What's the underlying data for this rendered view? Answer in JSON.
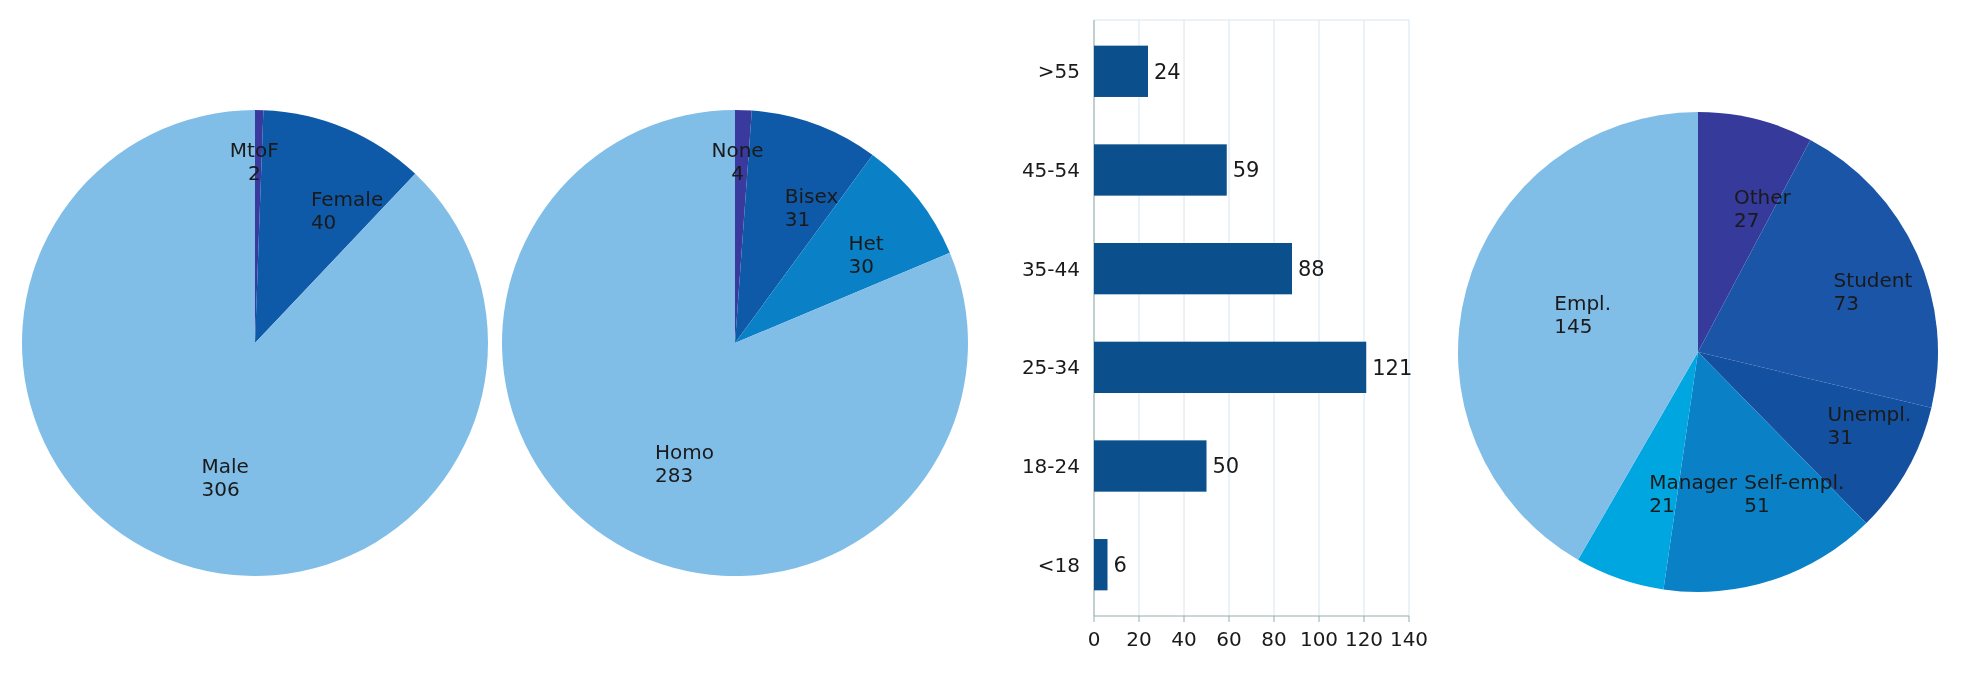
{
  "chart_data": [
    {
      "type": "pie",
      "categories": [
        "MtoF",
        "Female",
        "Male"
      ],
      "values": [
        2,
        40,
        306
      ],
      "colors": [
        "#3a3a9e",
        "#0f5aa8",
        "#80bee8"
      ],
      "data_labels": true
    },
    {
      "type": "pie",
      "categories": [
        "None",
        "Bisex",
        "Het",
        "Homo"
      ],
      "values": [
        4,
        31,
        30,
        283
      ],
      "colors": [
        "#3a3a9e",
        "#0f5aa8",
        "#0a80c6",
        "#80bee8"
      ],
      "data_labels": true
    },
    {
      "type": "bar",
      "orientation": "horizontal",
      "categories": [
        ">55",
        "45-54",
        "35-44",
        "25-34",
        "18-24",
        "<18"
      ],
      "values": [
        24,
        59,
        88,
        121,
        50,
        6
      ],
      "color": "#0b4f8c",
      "xlim": [
        0,
        140
      ],
      "xticks": [
        0,
        20,
        40,
        60,
        80,
        100,
        120,
        140
      ],
      "grid": "x",
      "data_labels": true
    },
    {
      "type": "pie",
      "categories": [
        "Other",
        "Student",
        "Unempl.",
        "Self-empl.",
        "Manager",
        "Empl."
      ],
      "values": [
        27,
        73,
        31,
        51,
        21,
        145
      ],
      "colors": [
        "#353a9b",
        "#1b55a8",
        "#1450a0",
        "#0a80c6",
        "#00a6e0",
        "#80bee8"
      ],
      "data_labels": true
    }
  ]
}
